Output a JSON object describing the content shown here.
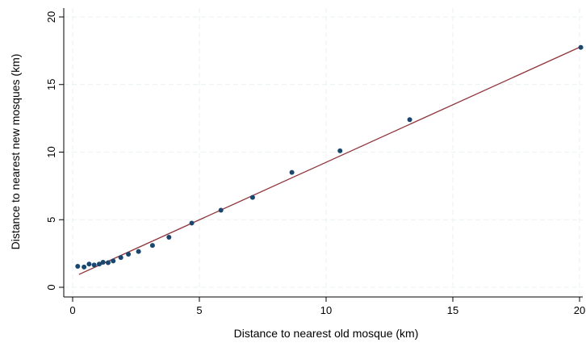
{
  "chart_data": {
    "type": "scatter",
    "title": "",
    "xlabel": "Distance to nearest old mosque (km)",
    "ylabel": "Distance to nearest new mosques (km)",
    "xlim": [
      0,
      20
    ],
    "ylim": [
      0,
      20
    ],
    "x_ticks": [
      0,
      5,
      10,
      15,
      20
    ],
    "y_ticks": [
      0,
      5,
      10,
      15,
      20
    ],
    "grid": true,
    "legend": "none",
    "colors": {
      "points": "#1a476f",
      "fit_line": "#90353b",
      "grid": "#eaf2f3",
      "axis": "#000000"
    },
    "series": [
      {
        "kind": "points",
        "x": [
          0.2,
          0.45,
          0.65,
          0.85,
          1.05,
          1.2,
          1.4,
          1.6,
          1.9,
          2.2,
          2.6,
          3.15,
          3.8,
          4.7,
          5.85,
          7.1,
          8.65,
          10.55,
          13.3,
          20.05
        ],
        "y": [
          1.55,
          1.5,
          1.72,
          1.65,
          1.72,
          1.85,
          1.82,
          1.95,
          2.2,
          2.45,
          2.65,
          3.1,
          3.7,
          4.75,
          5.7,
          6.65,
          8.5,
          10.1,
          12.4,
          17.75
        ]
      },
      {
        "kind": "fit-line",
        "x": [
          0.25,
          20.05
        ],
        "y": [
          0.95,
          17.8
        ]
      }
    ]
  }
}
